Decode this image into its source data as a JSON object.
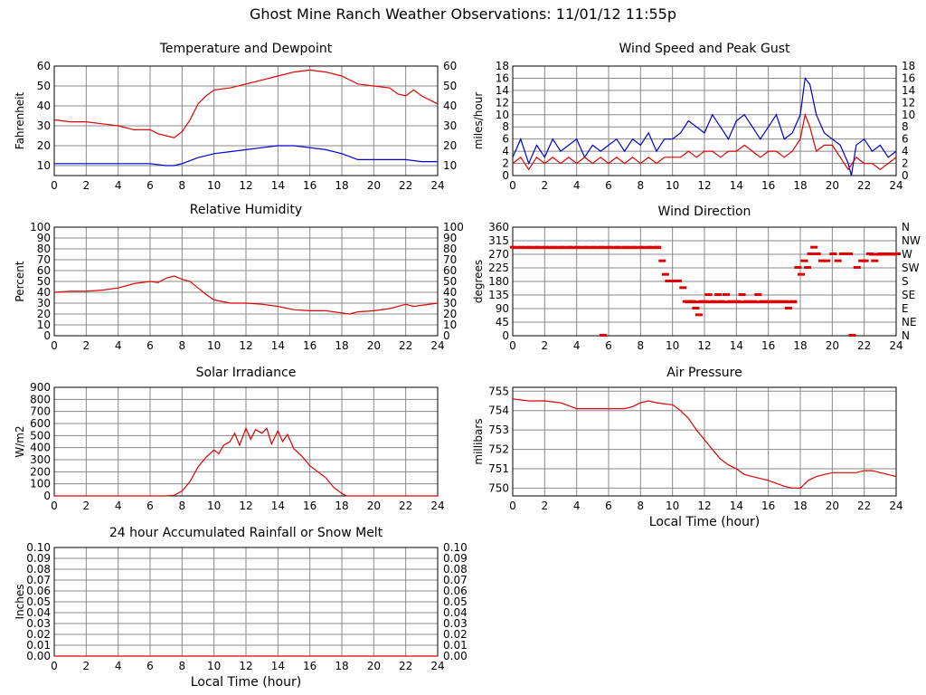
{
  "page_title": "Ghost Mine Ranch Weather Observations: 11/01/12 11:55p",
  "colors": {
    "red": "#e00000",
    "blue": "#0000cc",
    "grid": "#888888"
  },
  "chart_data": [
    {
      "id": "temp",
      "type": "line",
      "title": "Temperature and Dewpoint",
      "ylabel": "Fahrenheit",
      "xlabel": "",
      "xlim": [
        0,
        24
      ],
      "ylim": [
        5,
        60
      ],
      "yticks": [
        10,
        20,
        30,
        40,
        50,
        60
      ],
      "right_ticks": [
        "10",
        "20",
        "30",
        "40",
        "50",
        "60"
      ],
      "xticks": [
        0,
        2,
        4,
        6,
        8,
        10,
        12,
        14,
        16,
        18,
        20,
        22,
        24
      ],
      "grid": true,
      "series": [
        {
          "color": "#e00000",
          "x": [
            0,
            1,
            2,
            3,
            4,
            5,
            6,
            6.5,
            7,
            7.5,
            8,
            8.5,
            9,
            9.5,
            10,
            11,
            12,
            13,
            14,
            15,
            16,
            17,
            18,
            18.5,
            19,
            20,
            21,
            21.5,
            22,
            22.5,
            23,
            24
          ],
          "y": [
            33,
            32,
            32,
            31,
            30,
            28,
            28,
            26,
            25,
            24,
            27,
            33,
            41,
            45,
            48,
            49,
            51,
            53,
            55,
            57,
            58,
            57,
            55,
            53,
            51,
            50,
            49,
            46,
            45,
            48,
            45,
            41
          ]
        },
        {
          "color": "#0000cc",
          "x": [
            0,
            2,
            4,
            6,
            7,
            7.5,
            8,
            9,
            10,
            11,
            12,
            13,
            14,
            15,
            16,
            17,
            18,
            19,
            20,
            21,
            22,
            23,
            24
          ],
          "y": [
            11,
            11,
            11,
            11,
            10,
            10,
            11,
            14,
            16,
            17,
            18,
            19,
            20,
            20,
            19,
            18,
            16,
            13,
            13,
            13,
            13,
            12,
            12
          ]
        }
      ]
    },
    {
      "id": "wind",
      "type": "line",
      "title": "Wind Speed and Peak Gust",
      "ylabel": "miles/hour",
      "xlabel": "",
      "xlim": [
        0,
        24
      ],
      "ylim": [
        0,
        18
      ],
      "yticks": [
        0,
        2,
        4,
        6,
        8,
        10,
        12,
        14,
        16,
        18
      ],
      "right_ticks": [
        "0",
        "2",
        "4",
        "6",
        "8",
        "10",
        "12",
        "14",
        "16",
        "18"
      ],
      "xticks": [
        0,
        2,
        4,
        6,
        8,
        10,
        12,
        14,
        16,
        18,
        20,
        22,
        24
      ],
      "grid": true,
      "series": [
        {
          "color": "#0000cc",
          "x": [
            0,
            0.5,
            1,
            1.5,
            2,
            2.5,
            3,
            3.5,
            4,
            4.5,
            5,
            5.5,
            6,
            6.5,
            7,
            7.5,
            8,
            8.5,
            9,
            9.5,
            10,
            10.5,
            11,
            11.5,
            12,
            12.5,
            13,
            13.5,
            14,
            14.5,
            15,
            15.5,
            16,
            16.5,
            17,
            17.5,
            18,
            18.3,
            18.6,
            19,
            19.5,
            20,
            20.5,
            21,
            21.2,
            21.5,
            22,
            22.5,
            23,
            23.5,
            24
          ],
          "y": [
            3,
            6,
            2,
            5,
            3,
            6,
            4,
            5,
            6,
            3,
            5,
            4,
            5,
            6,
            4,
            6,
            5,
            7,
            4,
            6,
            6,
            7,
            9,
            8,
            7,
            10,
            8,
            6,
            9,
            10,
            8,
            6,
            8,
            10,
            6,
            7,
            10,
            16,
            15,
            10,
            7,
            6,
            5,
            2,
            0,
            5,
            6,
            4,
            5,
            3,
            4
          ]
        },
        {
          "color": "#e00000",
          "x": [
            0,
            0.5,
            1,
            1.5,
            2,
            2.5,
            3,
            3.5,
            4,
            4.5,
            5,
            5.5,
            6,
            6.5,
            7,
            7.5,
            8,
            8.5,
            9,
            9.5,
            10,
            10.5,
            11,
            11.5,
            12,
            12.5,
            13,
            13.5,
            14,
            14.5,
            15,
            15.5,
            16,
            16.5,
            17,
            17.5,
            18,
            18.3,
            18.6,
            19,
            19.5,
            20,
            20.5,
            21,
            21.5,
            22,
            22.5,
            23,
            23.5,
            24
          ],
          "y": [
            2,
            3,
            1,
            3,
            2,
            3,
            2,
            3,
            2,
            3,
            2,
            3,
            2,
            3,
            2,
            3,
            2,
            3,
            2,
            3,
            3,
            3,
            4,
            3,
            4,
            4,
            3,
            4,
            4,
            5,
            4,
            3,
            4,
            4,
            3,
            4,
            6,
            10,
            8,
            4,
            5,
            5,
            3,
            1,
            3,
            2,
            2,
            1,
            2,
            3
          ]
        }
      ]
    },
    {
      "id": "rh",
      "type": "line",
      "title": "Relative Humidity",
      "ylabel": "Percent",
      "xlabel": "",
      "xlim": [
        0,
        24
      ],
      "ylim": [
        0,
        100
      ],
      "yticks": [
        0,
        10,
        20,
        30,
        40,
        50,
        60,
        70,
        80,
        90,
        100
      ],
      "right_ticks": [
        "0",
        "10",
        "20",
        "30",
        "40",
        "50",
        "60",
        "70",
        "80",
        "90",
        "100"
      ],
      "xticks": [
        0,
        2,
        4,
        6,
        8,
        10,
        12,
        14,
        16,
        18,
        20,
        22,
        24
      ],
      "grid": true,
      "series": [
        {
          "color": "#e00000",
          "x": [
            0,
            1,
            2,
            3,
            4,
            5,
            6,
            6.5,
            7,
            7.5,
            8,
            8.5,
            9,
            9.5,
            10,
            11,
            12,
            13,
            14,
            15,
            16,
            17,
            18,
            18.5,
            19,
            20,
            21,
            22,
            22.5,
            23,
            24
          ],
          "y": [
            40,
            41,
            41,
            42,
            44,
            48,
            50,
            49,
            53,
            55,
            52,
            50,
            44,
            38,
            33,
            30,
            30,
            29,
            27,
            24,
            23,
            23,
            21,
            20,
            22,
            23,
            25,
            29,
            27,
            28,
            30
          ]
        }
      ]
    },
    {
      "id": "wdir",
      "type": "scatter",
      "title": "Wind Direction",
      "ylabel": "degrees",
      "xlabel": "",
      "xlim": [
        0,
        24
      ],
      "ylim": [
        0,
        360
      ],
      "yticks": [
        0,
        45,
        90,
        135,
        180,
        225,
        270,
        315,
        360
      ],
      "right_ticks": [
        "N",
        "NE",
        "E",
        "SE",
        "S",
        "SW",
        "W",
        "NW",
        "N"
      ],
      "xticks": [
        0,
        2,
        4,
        6,
        8,
        10,
        12,
        14,
        16,
        18,
        20,
        22,
        24
      ],
      "grid": true,
      "series": [
        {
          "color": "#e00000",
          "x": [
            0,
            0.5,
            1,
            1.5,
            2,
            2.5,
            3,
            3.5,
            4,
            4.5,
            5,
            5.5,
            5.6,
            6,
            6.5,
            7,
            7.5,
            8,
            8.5,
            9,
            9.3,
            9.5,
            9.7,
            10,
            10.3,
            10.6,
            10.8,
            11,
            11.2,
            11.4,
            11.6,
            11.8,
            12,
            12.2,
            12.5,
            12.8,
            13,
            13.3,
            13.6,
            14,
            14.3,
            14.6,
            15,
            15.3,
            15.6,
            16,
            16.3,
            16.6,
            17,
            17.2,
            17.5,
            17.8,
            18,
            18.2,
            18.4,
            18.6,
            18.8,
            19,
            19.3,
            19.6,
            20,
            20.3,
            20.6,
            21,
            21.2,
            21.5,
            21.8,
            22,
            22.3,
            22.6,
            23,
            23.3,
            23.6,
            24
          ],
          "y": [
            292,
            292,
            292,
            292,
            292,
            292,
            292,
            292,
            292,
            292,
            292,
            292,
            0,
            292,
            292,
            292,
            292,
            292,
            292,
            292,
            247,
            202,
            180,
            180,
            180,
            158,
            112,
            112,
            112,
            90,
            68,
            112,
            112,
            135,
            112,
            135,
            112,
            135,
            112,
            112,
            135,
            112,
            112,
            135,
            112,
            112,
            112,
            112,
            112,
            90,
            112,
            225,
            202,
            247,
            225,
            270,
            292,
            270,
            247,
            247,
            270,
            247,
            270,
            270,
            0,
            225,
            247,
            247,
            270,
            247,
            270,
            270,
            270,
            270
          ]
        }
      ]
    },
    {
      "id": "solar",
      "type": "line",
      "title": "Solar Irradiance",
      "ylabel": "W/m2",
      "xlabel": "",
      "xlim": [
        0,
        24
      ],
      "ylim": [
        0,
        900
      ],
      "yticks": [
        0,
        100,
        200,
        300,
        400,
        500,
        600,
        700,
        800,
        900
      ],
      "right_ticks": [],
      "xticks": [
        0,
        2,
        4,
        6,
        8,
        10,
        12,
        14,
        16,
        18,
        20,
        22,
        24
      ],
      "grid": true,
      "series": [
        {
          "color": "#e00000",
          "x": [
            0,
            2,
            4,
            6,
            7,
            7.5,
            8,
            8.5,
            9,
            9.5,
            10,
            10.3,
            10.6,
            11,
            11.3,
            11.6,
            12,
            12.3,
            12.6,
            13,
            13.3,
            13.6,
            14,
            14.3,
            14.6,
            15,
            15.5,
            16,
            16.5,
            17,
            17.5,
            18,
            18.3,
            19,
            20,
            22,
            24
          ],
          "y": [
            0,
            0,
            0,
            0,
            0,
            5,
            40,
            120,
            240,
            320,
            380,
            350,
            420,
            450,
            520,
            420,
            560,
            470,
            550,
            520,
            560,
            430,
            540,
            450,
            510,
            390,
            330,
            250,
            200,
            150,
            70,
            20,
            0,
            0,
            0,
            0,
            0
          ]
        }
      ]
    },
    {
      "id": "pressure",
      "type": "line",
      "title": "Air Pressure",
      "ylabel": "millibars",
      "xlabel": "Local Time (hour)",
      "xlim": [
        0,
        24
      ],
      "ylim": [
        749.6,
        755.2
      ],
      "yticks": [
        750,
        751,
        752,
        753,
        754,
        755
      ],
      "right_ticks": [],
      "xticks": [
        0,
        2,
        4,
        6,
        8,
        10,
        12,
        14,
        16,
        18,
        20,
        22,
        24
      ],
      "grid": true,
      "series": [
        {
          "color": "#e00000",
          "x": [
            0,
            1,
            2,
            3,
            4,
            5,
            6,
            7,
            7.5,
            8,
            8.5,
            9,
            10,
            10.5,
            11,
            11.5,
            12,
            12.5,
            13,
            13.5,
            14,
            14.5,
            15,
            16,
            17,
            17.5,
            18,
            18.5,
            19,
            20,
            21,
            21.5,
            22,
            22.5,
            23,
            23.5,
            24
          ],
          "y": [
            754.6,
            754.5,
            754.5,
            754.4,
            754.1,
            754.1,
            754.1,
            754.1,
            754.2,
            754.4,
            754.5,
            754.4,
            754.3,
            754.0,
            753.6,
            753.0,
            752.5,
            752.0,
            751.5,
            751.2,
            751.0,
            750.7,
            750.6,
            750.4,
            750.1,
            750.0,
            750.0,
            750.4,
            750.6,
            750.8,
            750.8,
            750.8,
            750.9,
            750.9,
            750.8,
            750.7,
            750.6
          ]
        }
      ]
    },
    {
      "id": "rain",
      "type": "line",
      "title": "24 hour Accumulated Rainfall or Snow Melt",
      "ylabel": "Inches",
      "xlabel": "Local Time (hour)",
      "xlim": [
        0,
        24
      ],
      "ylim": [
        0,
        0.1
      ],
      "yticks": [
        "0.00",
        "0.01",
        "0.02",
        "0.03",
        "0.04",
        "0.05",
        "0.06",
        "0.07",
        "0.08",
        "0.09",
        "0.10"
      ],
      "right_ticks": [
        "0.00",
        "0.01",
        "0.02",
        "0.03",
        "0.04",
        "0.05",
        "0.06",
        "0.07",
        "0.08",
        "0.09",
        "0.10"
      ],
      "xticks": [
        0,
        2,
        4,
        6,
        8,
        10,
        12,
        14,
        16,
        18,
        20,
        22,
        24
      ],
      "grid": true,
      "series": [
        {
          "color": "#e00000",
          "x": [
            0,
            24
          ],
          "y": [
            0,
            0
          ]
        }
      ]
    }
  ]
}
